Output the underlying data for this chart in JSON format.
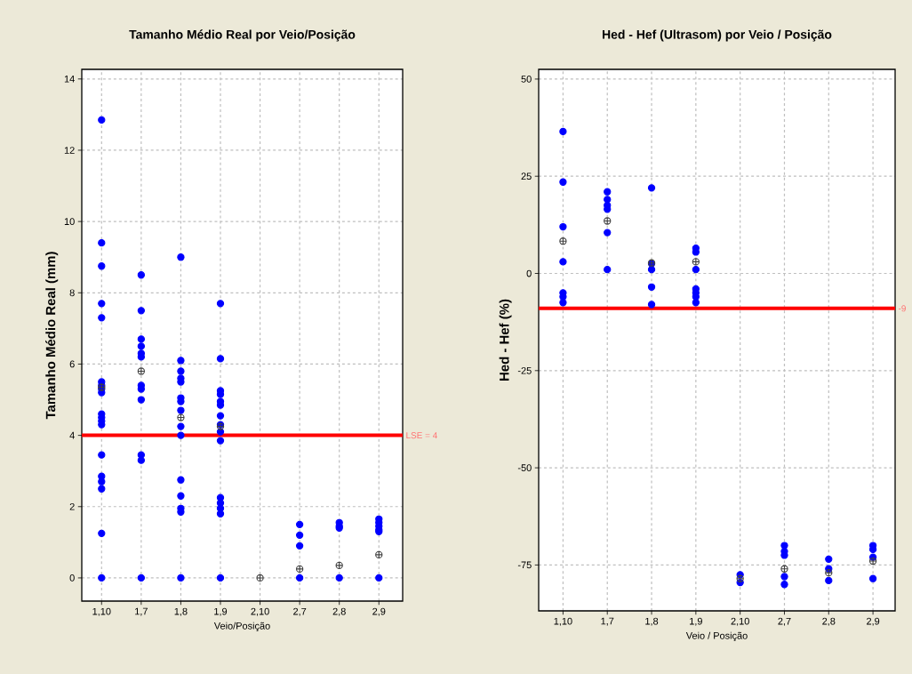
{
  "chart_data": [
    {
      "type": "scatter",
      "title": "Tamanho Médio  Real por Veio/Posição",
      "xlabel": "Veio/Posição",
      "ylabel": "Tamanho Médio Real (mm)",
      "categories": [
        "1,10",
        "1,7",
        "1,8",
        "1,9",
        "2,10",
        "2,7",
        "2,8",
        "2,9"
      ],
      "ylim": [
        -0.65,
        14.27
      ],
      "yticks": [
        0,
        2,
        4,
        6,
        8,
        10,
        12,
        14
      ],
      "grid": true,
      "ref_lines": [
        {
          "axis": "y",
          "value": 4,
          "label": "LSE = 4",
          "color": "#ff0000"
        }
      ],
      "series": [
        {
          "color": "#0000ff",
          "marker": "circle",
          "x": [
            "1,10",
            "1,10",
            "1,10",
            "1,10",
            "1,10",
            "1,10",
            "1,10",
            "1,10",
            "1,10",
            "1,10",
            "1,10",
            "1,10",
            "1,10",
            "1,10",
            "1,10",
            "1,10",
            "1,10",
            "1,10",
            "1,10",
            "1,7",
            "1,7",
            "1,7",
            "1,7",
            "1,7",
            "1,7",
            "1,7",
            "1,7",
            "1,7",
            "1,7",
            "1,7",
            "1,7",
            "1,8",
            "1,8",
            "1,8",
            "1,8",
            "1,8",
            "1,8",
            "1,8",
            "1,8",
            "1,8",
            "1,8",
            "1,8",
            "1,8",
            "1,8",
            "1,8",
            "1,8",
            "1,9",
            "1,9",
            "1,9",
            "1,9",
            "1,9",
            "1,9",
            "1,9",
            "1,9",
            "1,9",
            "1,9",
            "1,9",
            "1,9",
            "1,9",
            "1,9",
            "1,9",
            "2,7",
            "2,7",
            "2,7",
            "2,7",
            "2,8",
            "2,8",
            "2,8",
            "2,8",
            "2,9",
            "2,9",
            "2,9",
            "2,9",
            "2,9",
            "2,9"
          ],
          "values": [
            12.85,
            9.4,
            8.75,
            7.7,
            7.3,
            5.5,
            5.4,
            5.3,
            5.2,
            4.6,
            4.5,
            4.4,
            4.3,
            3.45,
            2.85,
            2.7,
            2.5,
            1.25,
            0,
            8.5,
            7.5,
            6.7,
            6.5,
            6.3,
            6.2,
            5.4,
            5.3,
            5.0,
            3.45,
            3.3,
            0,
            9.0,
            6.1,
            5.8,
            5.6,
            5.5,
            5.05,
            4.95,
            4.7,
            4.25,
            4.0,
            2.75,
            2.3,
            1.95,
            1.85,
            0,
            7.7,
            6.15,
            5.25,
            5.15,
            4.95,
            4.85,
            4.55,
            4.3,
            4.1,
            3.85,
            2.25,
            2.1,
            1.95,
            1.8,
            0,
            1.5,
            1.2,
            0.9,
            0,
            1.55,
            1.45,
            1.4,
            0,
            1.65,
            1.55,
            1.45,
            1.35,
            1.3,
            0
          ]
        },
        {
          "color": "#404040",
          "marker": "cross",
          "x": [
            "1,10",
            "1,7",
            "1,8",
            "1,9",
            "2,10",
            "2,7",
            "2,8",
            "2,9"
          ],
          "values": [
            5.35,
            5.8,
            4.5,
            4.25,
            0,
            0.25,
            0.35,
            0.65
          ]
        }
      ]
    },
    {
      "type": "scatter",
      "title": "Hed - Hef (Ultrasom) por Veio / Posição",
      "xlabel": "Veio / Posição",
      "ylabel": "Hed - Hef (%)",
      "categories": [
        "1,10",
        "1,7",
        "1,8",
        "1,9",
        "2,10",
        "2,7",
        "2,8",
        "2,9"
      ],
      "ylim": [
        -86.8,
        52.5
      ],
      "yticks": [
        -75,
        -50,
        -25,
        0,
        25,
        50
      ],
      "grid": true,
      "ref_lines": [
        {
          "axis": "y",
          "value": -9,
          "label": "-9",
          "color": "#ff0000"
        }
      ],
      "series": [
        {
          "color": "#0000ff",
          "marker": "circle",
          "x": [
            "1,10",
            "1,10",
            "1,10",
            "1,10",
            "1,10",
            "1,10",
            "1,10",
            "1,7",
            "1,7",
            "1,7",
            "1,7",
            "1,7",
            "1,7",
            "1,8",
            "1,8",
            "1,8",
            "1,8",
            "1,8",
            "1,9",
            "1,9",
            "1,9",
            "1,9",
            "1,9",
            "1,9",
            "1,9",
            "2,10",
            "2,10",
            "2,7",
            "2,7",
            "2,7",
            "2,7",
            "2,7",
            "2,8",
            "2,8",
            "2,8",
            "2,9",
            "2,9",
            "2,9",
            "2,9"
          ],
          "values": [
            36.5,
            23.5,
            12,
            3,
            -5,
            -6,
            -7.5,
            21,
            19,
            17.5,
            16.5,
            10.5,
            1,
            22,
            2.5,
            1,
            -3.5,
            -8,
            6.5,
            5.5,
            1,
            -4,
            -5,
            -6,
            -7.5,
            -77.5,
            -79.5,
            -70,
            -71.5,
            -72.5,
            -78,
            -80,
            -73.5,
            -76,
            -79,
            -70,
            -71,
            -73,
            -78.5
          ]
        },
        {
          "color": "#404040",
          "marker": "cross",
          "x": [
            "1,10",
            "1,7",
            "1,8",
            "1,9",
            "2,10",
            "2,7",
            "2,8",
            "2,9"
          ],
          "values": [
            8.3,
            13.5,
            2.7,
            3,
            -78.5,
            -76,
            -77,
            -74
          ]
        }
      ]
    }
  ]
}
